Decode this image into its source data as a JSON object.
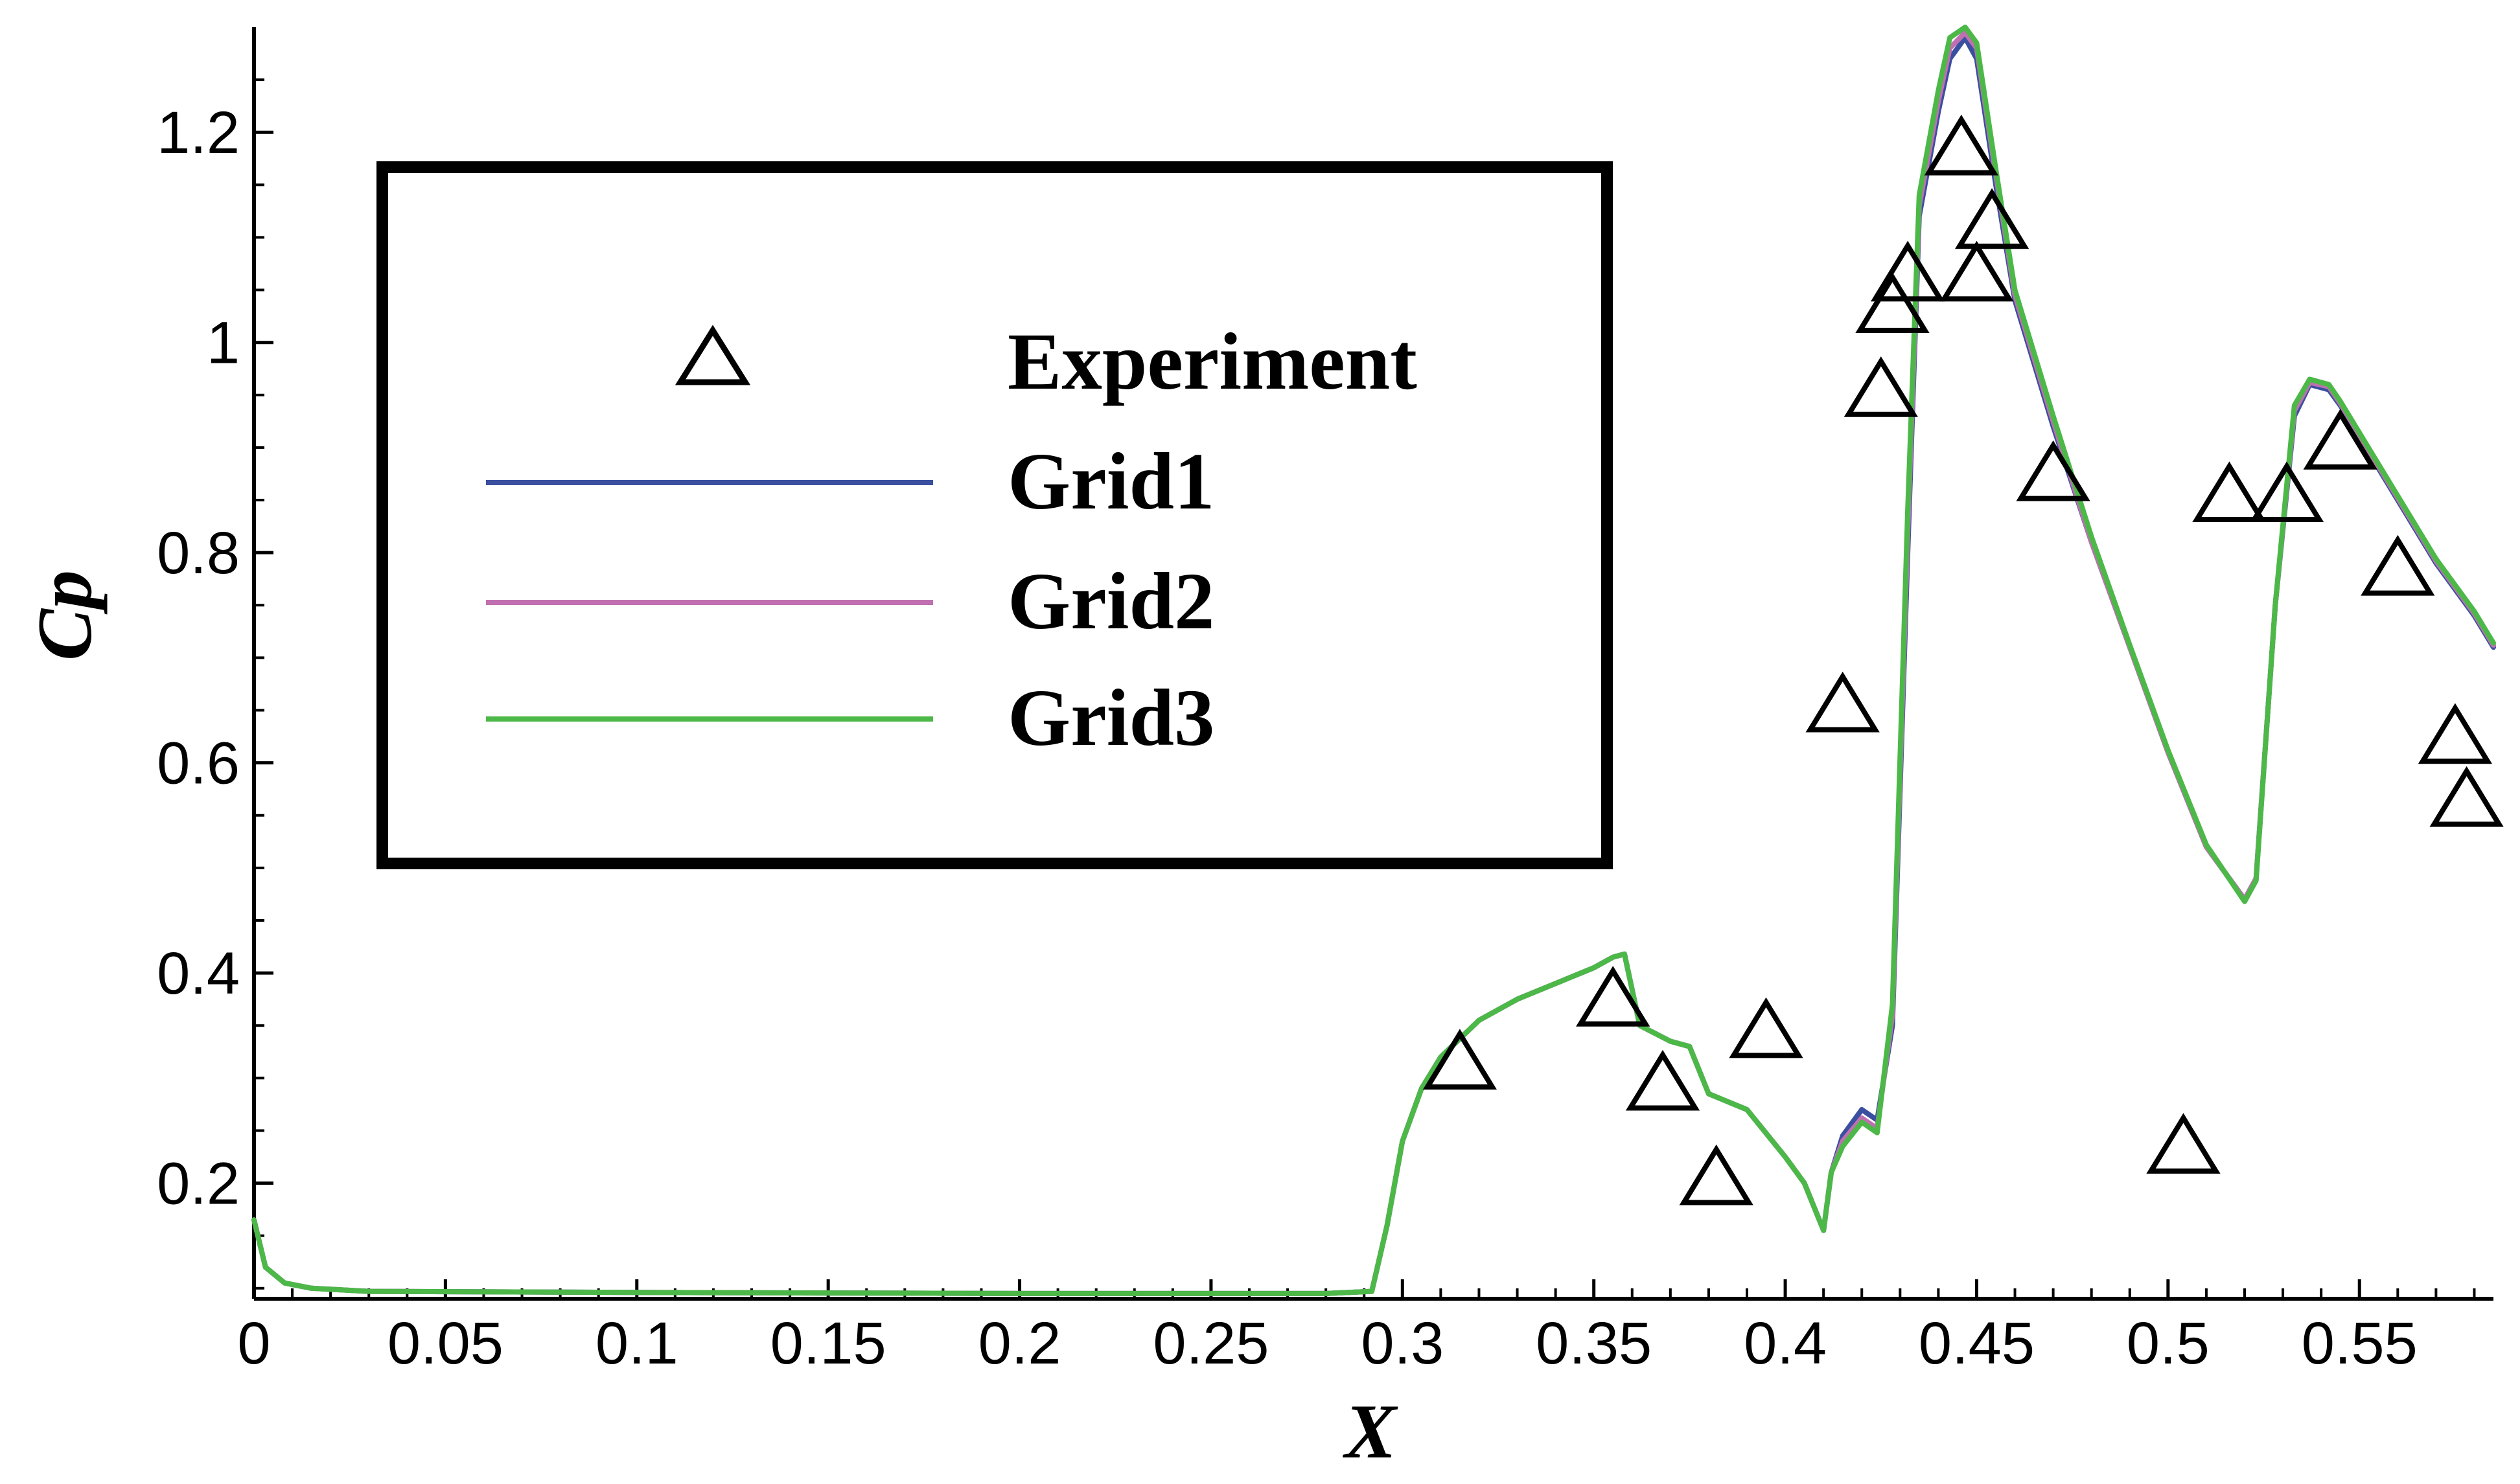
{
  "chart_data": {
    "type": "line",
    "title": "",
    "xlabel": "X",
    "ylabel": "Cp",
    "xlim": [
      0,
      0.585
    ],
    "ylim": [
      0.09,
      1.3
    ],
    "xticks": [
      0,
      0.05,
      0.1,
      0.15,
      0.2,
      0.25,
      0.3,
      0.35,
      0.4,
      0.45,
      0.5,
      0.55
    ],
    "xtick_labels": [
      "0",
      "0.05",
      "0.1",
      "0.15",
      "0.2",
      "0.25",
      "0.3",
      "0.35",
      "0.4",
      "0.45",
      "0.5",
      "0.55"
    ],
    "yticks": [
      0.2,
      0.4,
      0.6,
      0.8,
      1.0,
      1.2
    ],
    "ytick_labels": [
      "0.2",
      "0.4",
      "0.6",
      "0.8",
      "1",
      "1.2"
    ],
    "grid": false,
    "legend_position": "upper-left",
    "legend": {
      "experiment_label": "Experiment",
      "grid1_label": "Grid1",
      "grid2_label": "Grid2",
      "grid3_label": "Grid3"
    },
    "colors": {
      "experiment": "#000000",
      "grid1": "#3a4fa0",
      "grid2": "#c070b0",
      "grid3": "#4cb848"
    },
    "experiment": {
      "name": "Experiment",
      "marker": "triangle",
      "x": [
        0.315,
        0.355,
        0.368,
        0.382,
        0.395,
        0.415,
        0.425,
        0.428,
        0.432,
        0.446,
        0.45,
        0.454,
        0.47,
        0.504,
        0.516,
        0.531,
        0.545,
        0.56,
        0.575,
        0.578
      ],
      "y": [
        0.31,
        0.37,
        0.29,
        0.2,
        0.34,
        0.65,
        0.95,
        1.03,
        1.06,
        1.18,
        1.06,
        1.11,
        0.87,
        0.23,
        0.85,
        0.85,
        0.9,
        0.78,
        0.62,
        0.56
      ]
    },
    "series": [
      {
        "name": "Grid1",
        "x": [
          0,
          0.003,
          0.008,
          0.015,
          0.03,
          0.1,
          0.2,
          0.28,
          0.292,
          0.296,
          0.3,
          0.305,
          0.31,
          0.32,
          0.33,
          0.34,
          0.35,
          0.355,
          0.358,
          0.362,
          0.37,
          0.375,
          0.38,
          0.39,
          0.4,
          0.405,
          0.41,
          0.412,
          0.415,
          0.42,
          0.424,
          0.428,
          0.432,
          0.435,
          0.44,
          0.443,
          0.447,
          0.45,
          0.455,
          0.46,
          0.47,
          0.48,
          0.49,
          0.5,
          0.51,
          0.52,
          0.523,
          0.528,
          0.533,
          0.537,
          0.542,
          0.545,
          0.55,
          0.56,
          0.57,
          0.58,
          0.585
        ],
        "y": [
          0.165,
          0.12,
          0.105,
          0.1,
          0.097,
          0.096,
          0.095,
          0.095,
          0.097,
          0.16,
          0.24,
          0.29,
          0.32,
          0.355,
          0.375,
          0.39,
          0.405,
          0.415,
          0.418,
          0.35,
          0.335,
          0.33,
          0.285,
          0.27,
          0.225,
          0.2,
          0.155,
          0.21,
          0.245,
          0.27,
          0.26,
          0.35,
          0.8,
          1.12,
          1.22,
          1.27,
          1.29,
          1.27,
          1.15,
          1.04,
          0.92,
          0.81,
          0.71,
          0.61,
          0.52,
          0.47,
          0.49,
          0.75,
          0.93,
          0.96,
          0.955,
          0.94,
          0.91,
          0.85,
          0.79,
          0.74,
          0.71
        ]
      },
      {
        "name": "Grid2",
        "x": [
          0,
          0.003,
          0.008,
          0.015,
          0.03,
          0.1,
          0.2,
          0.28,
          0.292,
          0.296,
          0.3,
          0.305,
          0.31,
          0.32,
          0.33,
          0.34,
          0.35,
          0.355,
          0.358,
          0.362,
          0.37,
          0.375,
          0.38,
          0.39,
          0.4,
          0.405,
          0.41,
          0.412,
          0.415,
          0.42,
          0.424,
          0.428,
          0.432,
          0.435,
          0.44,
          0.443,
          0.447,
          0.45,
          0.455,
          0.46,
          0.47,
          0.48,
          0.49,
          0.5,
          0.51,
          0.52,
          0.523,
          0.528,
          0.533,
          0.537,
          0.542,
          0.545,
          0.55,
          0.56,
          0.57,
          0.58,
          0.585
        ],
        "y": [
          0.165,
          0.12,
          0.105,
          0.1,
          0.097,
          0.096,
          0.095,
          0.095,
          0.097,
          0.16,
          0.24,
          0.29,
          0.32,
          0.355,
          0.375,
          0.39,
          0.405,
          0.415,
          0.418,
          0.35,
          0.335,
          0.33,
          0.285,
          0.27,
          0.225,
          0.2,
          0.155,
          0.21,
          0.24,
          0.262,
          0.252,
          0.36,
          0.82,
          1.13,
          1.23,
          1.28,
          1.295,
          1.28,
          1.16,
          1.045,
          0.925,
          0.81,
          0.71,
          0.61,
          0.52,
          0.47,
          0.49,
          0.75,
          0.935,
          0.962,
          0.958,
          0.942,
          0.912,
          0.852,
          0.792,
          0.742,
          0.712
        ]
      },
      {
        "name": "Grid3",
        "x": [
          0,
          0.003,
          0.008,
          0.015,
          0.03,
          0.1,
          0.2,
          0.28,
          0.292,
          0.296,
          0.3,
          0.305,
          0.31,
          0.32,
          0.33,
          0.34,
          0.35,
          0.355,
          0.358,
          0.362,
          0.37,
          0.375,
          0.38,
          0.39,
          0.4,
          0.405,
          0.41,
          0.412,
          0.415,
          0.42,
          0.424,
          0.428,
          0.432,
          0.435,
          0.44,
          0.443,
          0.447,
          0.45,
          0.455,
          0.46,
          0.47,
          0.48,
          0.49,
          0.5,
          0.51,
          0.52,
          0.523,
          0.528,
          0.533,
          0.537,
          0.542,
          0.545,
          0.55,
          0.56,
          0.57,
          0.58,
          0.585
        ],
        "y": [
          0.165,
          0.12,
          0.105,
          0.1,
          0.097,
          0.096,
          0.095,
          0.095,
          0.097,
          0.16,
          0.24,
          0.29,
          0.32,
          0.355,
          0.375,
          0.39,
          0.405,
          0.415,
          0.418,
          0.35,
          0.335,
          0.33,
          0.285,
          0.27,
          0.225,
          0.2,
          0.155,
          0.21,
          0.235,
          0.258,
          0.248,
          0.37,
          0.84,
          1.14,
          1.24,
          1.29,
          1.3,
          1.285,
          1.165,
          1.05,
          0.93,
          0.815,
          0.712,
          0.612,
          0.522,
          0.468,
          0.488,
          0.75,
          0.94,
          0.965,
          0.96,
          0.944,
          0.914,
          0.854,
          0.794,
          0.744,
          0.714
        ]
      }
    ]
  }
}
